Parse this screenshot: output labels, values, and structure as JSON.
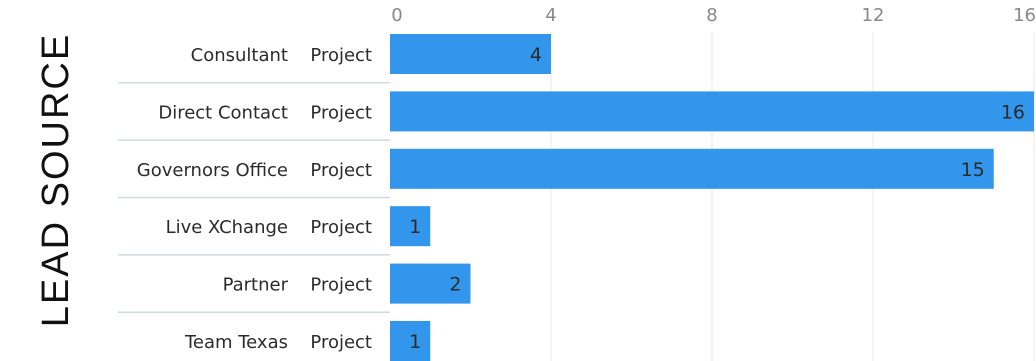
{
  "chart_data": {
    "type": "bar",
    "orientation": "horizontal",
    "y_axis_title": "LEAD SOURCE",
    "row_group_label": "Project",
    "categories": [
      "Consultant",
      "Direct Contact",
      "Governors Office",
      "Live XChange",
      "Partner",
      "Team Texas"
    ],
    "values": [
      4,
      16,
      15,
      1,
      2,
      1
    ],
    "x_ticks": [
      0,
      4,
      8,
      12,
      16
    ],
    "xlim": [
      0,
      16
    ],
    "grid": true,
    "data_labels": true,
    "colors": {
      "bar": "#3296ed",
      "grid": "#e4e8ed",
      "tick_text": "#888888",
      "label_text": "#2b2b2b",
      "axis_title": "#111111",
      "separator": "#cfdae3"
    }
  }
}
